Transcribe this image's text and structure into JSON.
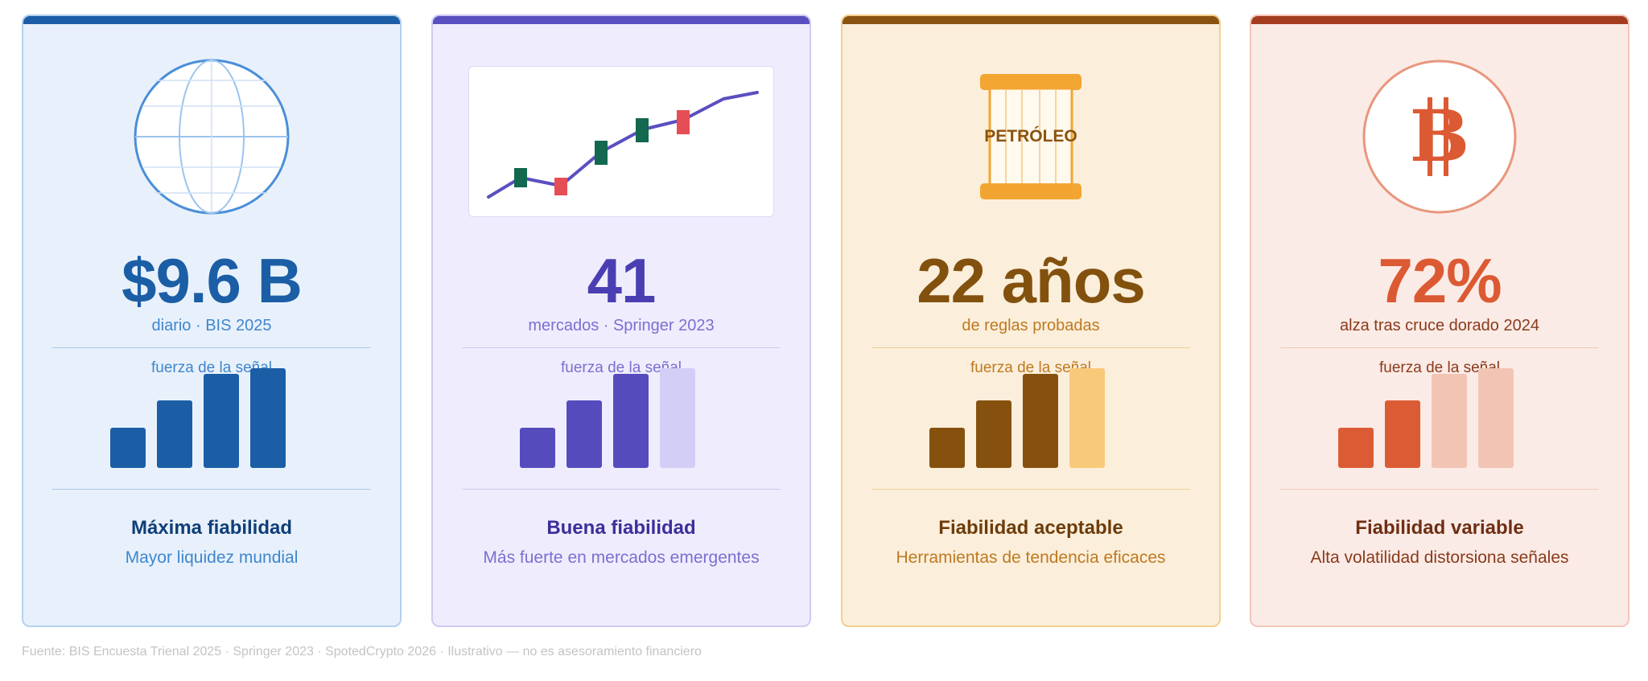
{
  "cards": [
    {
      "id": "fx",
      "icon": "globe-icon",
      "stat": "$9.6 B",
      "stat_sub": "diario · BIS 2025",
      "signal_label": "fuerza de la señal",
      "signal_strength": 4,
      "signal_max": 4,
      "reliability": "Máxima fiabilidad",
      "reliability_sub": "Mayor liquidez mundial",
      "colors": {
        "bg": "#e8f1fb",
        "border": "#b4d0ef",
        "accent": "#1b5ea6",
        "stat": "#1b5ea6",
        "sub": "#3f86cf",
        "divider": "#a9c8ea",
        "bar_on": "#1b5ea6",
        "bar_off": "#b9d4f0",
        "title": "#0f3e78"
      }
    },
    {
      "id": "stocks",
      "icon": "line-candlestick-chart-icon",
      "stat": "41",
      "stat_sub": "mercados · Springer 2023",
      "signal_label": "fuerza de la señal",
      "signal_strength": 3,
      "signal_max": 4,
      "reliability": "Buena fiabilidad",
      "reliability_sub": "Más fuerte en mercados emergentes",
      "colors": {
        "bg": "#efedfd",
        "border": "#cfcaf3",
        "accent": "#5a4fc0",
        "stat": "#4a3fb2",
        "sub": "#7a6fd2",
        "divider": "#cfcaee",
        "bar_on": "#564bbd",
        "bar_off": "#d2cef6",
        "title": "#3a2f9a",
        "candle_up": "#13684f",
        "candle_down": "#e64e55"
      }
    },
    {
      "id": "oil",
      "icon": "oil-barrel-icon",
      "icon_text": "PETRÓLEO",
      "stat": "22 años",
      "stat_sub": "de reglas probadas",
      "signal_label": "fuerza de la señal",
      "signal_strength": 3,
      "signal_max": 4,
      "reliability": "Fiabilidad aceptable",
      "reliability_sub": "Herramientas de tendencia eficaces",
      "colors": {
        "bg": "#fbefdc",
        "border": "#f4cf8e",
        "accent": "#8a5310",
        "stat": "#83510e",
        "sub": "#c0791f",
        "divider": "#f0cf96",
        "bar_on": "#86510e",
        "bar_off": "#f9c97a",
        "title": "#6d3c0a",
        "barrel": "#f3a532"
      }
    },
    {
      "id": "crypto",
      "icon": "bitcoin-icon",
      "icon_text": "B",
      "stat": "72%",
      "stat_sub": "alza tras cruce dorado 2024",
      "signal_label": "fuerza de la señal",
      "signal_strength": 2,
      "signal_max": 4,
      "reliability": "Fiabilidad variable",
      "reliability_sub": "Alta volatilidad distorsiona señales",
      "colors": {
        "bg": "#fbebe6",
        "border": "#f3c6ba",
        "accent": "#a43d1f",
        "stat": "#dc5a33",
        "sub": "#8a3a1c",
        "divider": "#efc9bd",
        "bar_on": "#db5c34",
        "bar_off": "#f2c4b4",
        "title": "#6e2e14",
        "coin_ring": "#e8967c"
      }
    }
  ],
  "footer": "Fuente: BIS Encuesta Trienal 2025 · Springer 2023 · SpotedCrypto 2026 · Ilustrativo — no es asesoramiento financiero"
}
